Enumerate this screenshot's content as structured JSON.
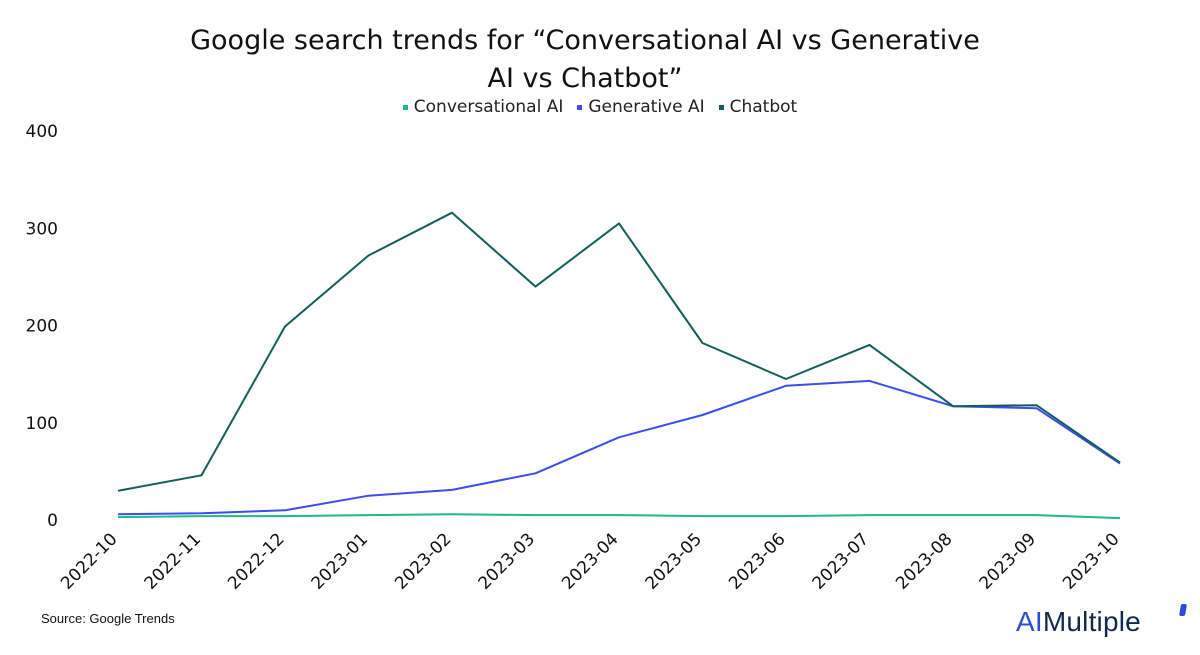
{
  "chart_data": {
    "type": "line",
    "title_lines": [
      "Google search trends for “Conversational AI vs Generative",
      "AI vs Chatbot”"
    ],
    "categories": [
      "2022-10",
      "2022-11",
      "2022-12",
      "2023-01",
      "2023-02",
      "2023-03",
      "2023-04",
      "2023-05",
      "2023-06",
      "2023-07",
      "2023-08",
      "2023-09",
      "2023-10"
    ],
    "series": [
      {
        "name": "Conversational AI",
        "color": "#1fb98a",
        "values": [
          3,
          4,
          4,
          5,
          6,
          5,
          5,
          4,
          4,
          5,
          5,
          5,
          2
        ]
      },
      {
        "name": "Generative AI",
        "color": "#3b4cf0",
        "values": [
          6,
          7,
          10,
          25,
          31,
          48,
          85,
          108,
          138,
          143,
          117,
          115,
          58
        ]
      },
      {
        "name": "Chatbot",
        "color": "#115e59",
        "values": [
          30,
          46,
          199,
          272,
          316,
          240,
          305,
          182,
          145,
          180,
          117,
          118,
          59
        ]
      }
    ],
    "ylim": [
      0,
      400
    ],
    "yticks": [
      0,
      100,
      200,
      300,
      400
    ],
    "ytick_labels": [
      "0",
      "100",
      "200",
      "300",
      "400"
    ],
    "grid": false,
    "legend_position": "top"
  },
  "source_text": "Source: Google Trends",
  "brand": {
    "part1": "AI",
    "part2": "Multiple"
  }
}
